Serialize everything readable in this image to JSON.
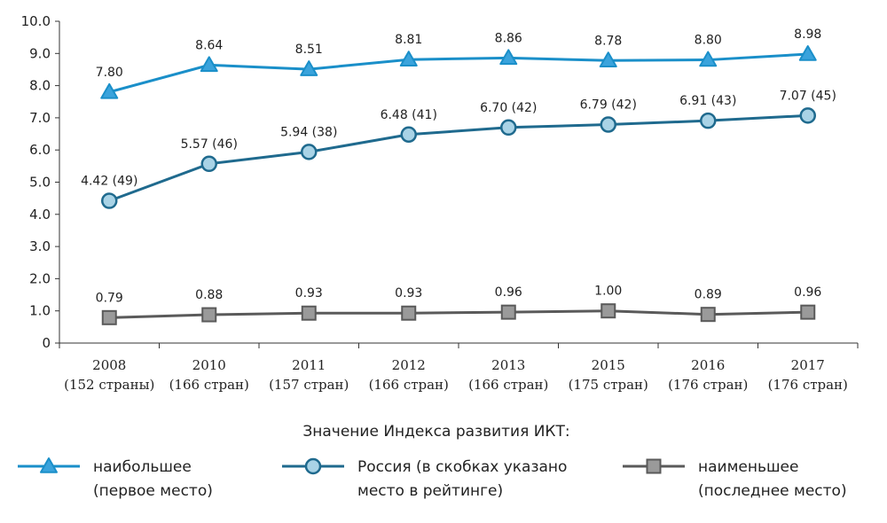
{
  "chart_data": {
    "type": "line",
    "categories": [
      [
        "2008",
        "(152 страны)"
      ],
      [
        "2010",
        "(166 стран)"
      ],
      [
        "2011",
        "(157 стран)"
      ],
      [
        "2012",
        "(166 стран)"
      ],
      [
        "2013",
        "(166 стран)"
      ],
      [
        "2015",
        "(175 стран)"
      ],
      [
        "2016",
        "(176 стран)"
      ],
      [
        "2017",
        "(176 стран)"
      ]
    ],
    "ylim": [
      0,
      10
    ],
    "yticks": [
      "0",
      "1.0",
      "2.0",
      "3.0",
      "4.0",
      "5.0",
      "6.0",
      "7.0",
      "8.0",
      "9.0",
      "10.0"
    ],
    "legend_title": "Значение Индекса развития ИКТ:",
    "series": [
      {
        "key": "max",
        "marker": "triangle",
        "color": "#1a8fc9",
        "fill": "#3aa3dc",
        "legend_lines": [
          "наибольшее",
          "(первое место)"
        ],
        "values": [
          7.8,
          8.64,
          8.51,
          8.81,
          8.86,
          8.78,
          8.8,
          8.98
        ],
        "labels": [
          "7.80",
          "8.64",
          "8.51",
          "8.81",
          "8.86",
          "8.78",
          "8.80",
          "8.98"
        ]
      },
      {
        "key": "russia",
        "marker": "circle",
        "color": "#1f6a8e",
        "fill": "#a9d3e6",
        "legend_lines": [
          "Россия (в скобках указано",
          "место в рейтинге)"
        ],
        "values": [
          4.42,
          5.57,
          5.94,
          6.48,
          6.7,
          6.79,
          6.91,
          7.07
        ],
        "labels": [
          "4.42 (49)",
          "5.57 (46)",
          "5.94 (38)",
          "6.48 (41)",
          "6.70 (42)",
          "6.79 (42)",
          "6.91 (43)",
          "7.07 (45)"
        ]
      },
      {
        "key": "min",
        "marker": "square",
        "color": "#5a5a5a",
        "fill": "#9a9a9a",
        "legend_lines": [
          "наименьшее",
          "(последнее место)"
        ],
        "values": [
          0.79,
          0.88,
          0.93,
          0.93,
          0.96,
          1.0,
          0.89,
          0.96
        ],
        "labels": [
          "0.79",
          "0.88",
          "0.93",
          "0.93",
          "0.96",
          "1.00",
          "0.89",
          "0.96"
        ]
      }
    ]
  }
}
